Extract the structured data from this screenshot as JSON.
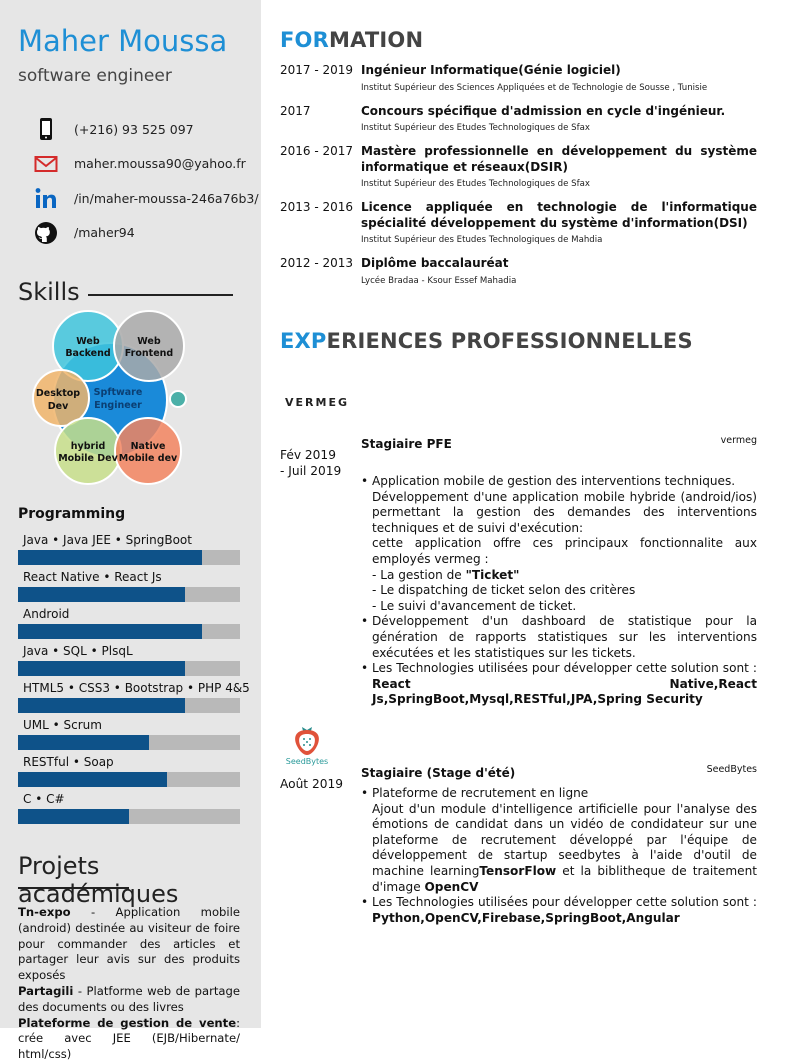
{
  "profile": {
    "name": "Maher Moussa",
    "role": "software engineer"
  },
  "contacts": [
    {
      "icon": "phone-icon",
      "text": "(+216) 93 525 097"
    },
    {
      "icon": "email-icon",
      "text": "maher.moussa90@yahoo.fr"
    },
    {
      "icon": "linkedin-icon",
      "text": "/in/maher-moussa-246a76b3/"
    },
    {
      "icon": "github-icon",
      "text": "/maher94"
    }
  ],
  "skills": {
    "title": "Skills",
    "venn": {
      "center": "Spftware Engineer",
      "items": [
        "Web Backend",
        "Web Frontend",
        "Desktop Dev",
        "hybrid Mobile Dev",
        "Native Mobile dev"
      ],
      "colors": {
        "center": "#1a8ad9",
        "backend": "#3fc4dc",
        "frontend": "#a9a9a9",
        "desktop": "#f0b46a",
        "hybrid": "#c7de8a",
        "native": "#f2845f",
        "dot": "#4bb0a8"
      }
    },
    "programming_title": "Programming",
    "bars": [
      {
        "label": "Java • Java JEE • SpringBoot",
        "level": 0.83
      },
      {
        "label": "React Native • React Js",
        "level": 0.75
      },
      {
        "label": "Android",
        "level": 0.83
      },
      {
        "label": "Java • SQL • PlsqL",
        "level": 0.75
      },
      {
        "label": "HTML5 • CSS3 • Bootstrap • PHP 4&5",
        "level": 0.75
      },
      {
        "label": "UML • Scrum",
        "level": 0.59
      },
      {
        "label": "RESTful • Soap",
        "level": 0.67
      },
      {
        "label": "C • C#",
        "level": 0.5
      }
    ]
  },
  "projects": {
    "title": "Projets académiques",
    "items": [
      {
        "name": "Tn-expo",
        "text": " - Application mobile (android) destinée au visiteur de foire pour commander des articles et partager leur avis sur des produits exposés"
      },
      {
        "name": "Partagili",
        "text": " - Platforme web de partage des documents ou des livres"
      },
      {
        "name": "Plateforme de gestion de vente",
        "text": ": crée avec JEE (EJB/Hibernate/ html/css)"
      }
    ]
  },
  "formation": {
    "title_accent": "FOR",
    "title_rest": "MATION",
    "items": [
      {
        "years": "2017 - 2019",
        "title": "Ingénieur Informatique(Génie logiciel)",
        "inst": "Institut Supérieur des Sciences Appliquées et de Technologie de Sousse , Tunisie"
      },
      {
        "years": "2017",
        "title": "Concours spécifique d'admission en cycle d'ingénieur.",
        "inst": "Institut Supérieur des Etudes Technologiques de Sfax"
      },
      {
        "years": "2016 - 2017",
        "title": "Mastère professionnelle en développement du système informatique et réseaux(DSIR)",
        "inst": "Institut Supérieur des Etudes Technologiques de Sfax"
      },
      {
        "years": "2013 - 2016",
        "title": "Licence appliquée en technologie de l'informatique spécialité développement du système d'information(DSI)",
        "inst": "Institut Supérieur des Etudes Technologiques de Mahdia"
      },
      {
        "years": "2012 - 2013",
        "title": "Diplôme baccalauréat",
        "inst": "Lycée Bradaa - Ksour Essef Mahadia"
      }
    ]
  },
  "experience": {
    "title_accent": "EXP",
    "title_rest": "ERIENCES PROFESSIONNELLES",
    "items": [
      {
        "logo": "VERMEG",
        "title": "Stagiaire PFE",
        "company": "vermeg",
        "date1": "Fév 2019",
        "date2": "- Juil 2019",
        "lines": [
          {
            "b": true,
            "parts": [
              {
                "t": "Application mobile de gestion des interventions techniques."
              }
            ]
          },
          {
            "b": false,
            "parts": [
              {
                "t": "Développement d'une application mobile hybride (android/ios) permettant la gestion des demandes des interventions techniques et de suivi d'exécution:"
              }
            ]
          },
          {
            "b": false,
            "parts": [
              {
                "t": "cette application offre ces principaux fonctionnalite aux employés vermeg :"
              }
            ]
          },
          {
            "b": false,
            "parts": [
              {
                "t": "- La gestion de "
              },
              {
                "t": "\"Ticket\"",
                "bold": true
              }
            ]
          },
          {
            "b": false,
            "parts": [
              {
                "t": "- Le dispatching de ticket selon des critères"
              }
            ]
          },
          {
            "b": false,
            "parts": [
              {
                "t": "- Le suivi d'avancement de ticket."
              }
            ]
          },
          {
            "b": true,
            "parts": [
              {
                "t": "Développement d'un dashboard de statistique pour la génération de rapports statistiques sur les interventions exécutées et les statistiques sur les tickets."
              }
            ]
          },
          {
            "b": true,
            "parts": [
              {
                "t": "Les Technologies utilisées pour développer cette solution sont : "
              },
              {
                "t": "React Native,React Js,SpringBoot,Mysql,RESTful,JPA,Spring Security",
                "bold": true
              }
            ]
          }
        ]
      },
      {
        "logo": "SeedBytes",
        "title": "Stagiaire (Stage d'été)",
        "company": "SeedBytes",
        "date1": "Août 2019",
        "date2": "",
        "lines": [
          {
            "b": true,
            "parts": [
              {
                "t": "Plateforme de recrutement en ligne"
              }
            ]
          },
          {
            "b": false,
            "parts": [
              {
                "t": "Ajout d'un module d'intelligence artificielle pour l'analyse des émotions de candidat dans un vidéo de condidateur sur une plateforme de recrutement développé par l'équipe de développement de startup seedbytes à l'aide d'outil de machine learning"
              },
              {
                "t": "TensorFlow",
                "bold": true
              },
              {
                "t": " et la biblitheque de traitement d'image "
              },
              {
                "t": "OpenCV",
                "bold": true
              }
            ]
          },
          {
            "b": true,
            "parts": [
              {
                "t": "Les Technologies utilisées pour développer cette solution sont : "
              },
              {
                "t": "Python,OpenCV,Firebase,SpringBoot,Angular",
                "bold": true
              }
            ]
          }
        ]
      }
    ]
  },
  "colors": {
    "accent": "#1e8fd5",
    "bar_fill": "#0e5289",
    "bar_track": "#b9b9b9",
    "sidebar": "#e6e6e6"
  }
}
